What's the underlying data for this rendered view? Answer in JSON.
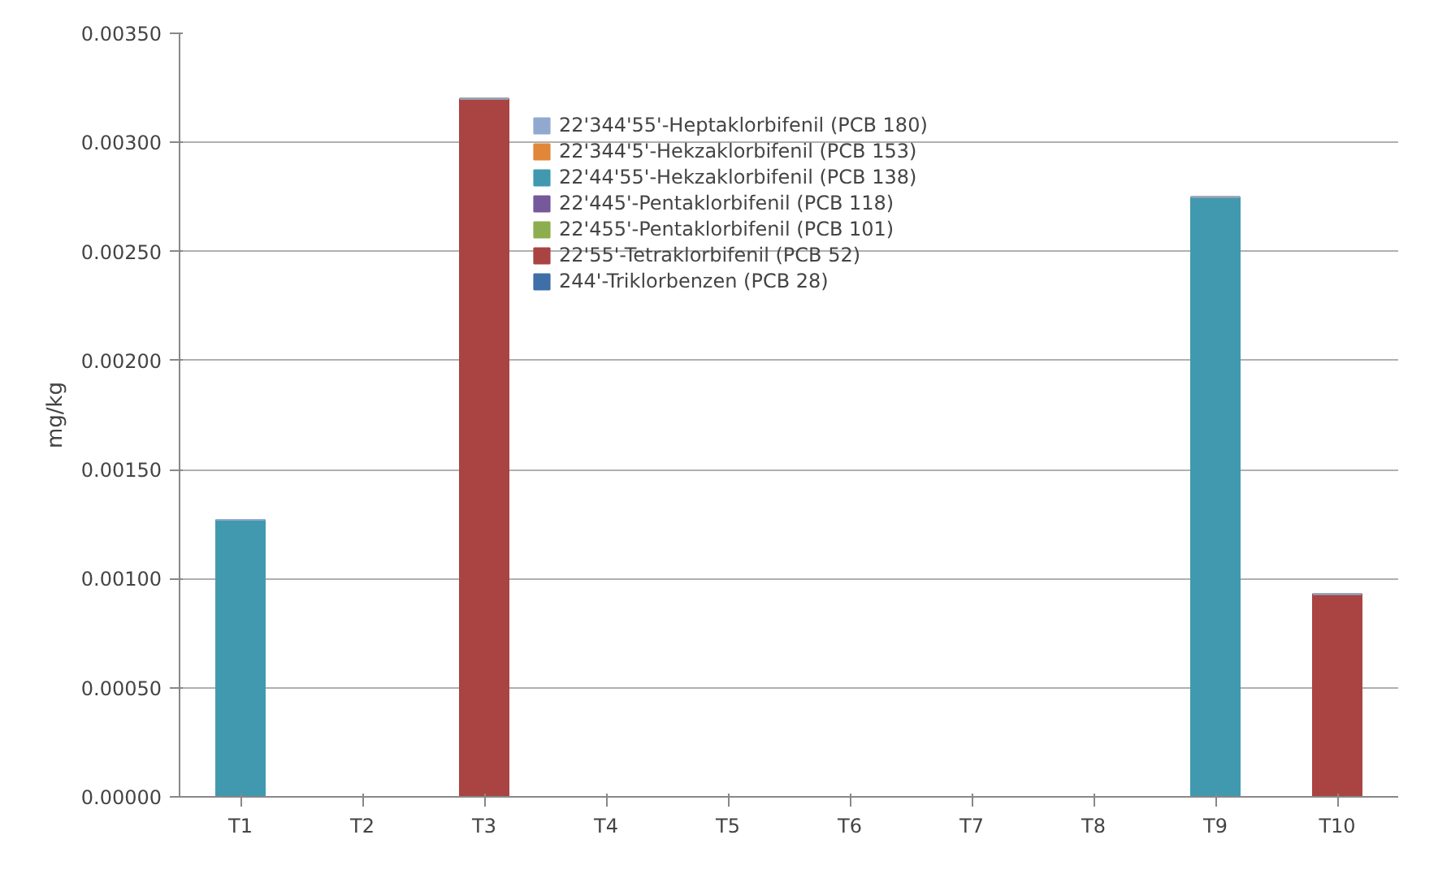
{
  "chart_data": {
    "type": "bar",
    "stacked": true,
    "ylabel": "mg/kg",
    "categories": [
      "T1",
      "T2",
      "T3",
      "T4",
      "T5",
      "T6",
      "T7",
      "T8",
      "T9",
      "T10"
    ],
    "series": [
      {
        "name": "244'-Triklorbenzen (PCB 28)",
        "color": "#3e6fa8",
        "values": [
          0,
          0,
          0,
          0,
          0,
          0,
          0,
          0,
          0,
          0
        ]
      },
      {
        "name": "22'55'-Tetraklorbifenil (PCB 52)",
        "color": "#a94442",
        "values": [
          0,
          0,
          0.0032,
          0,
          0,
          0,
          0,
          0,
          0,
          0.00093
        ]
      },
      {
        "name": "22'455'-Pentaklorbifenil (PCB 101)",
        "color": "#8cae4f",
        "values": [
          0,
          0,
          0,
          0,
          0,
          0,
          0,
          0,
          0,
          0
        ]
      },
      {
        "name": "22'445'-Pentaklorbifenil (PCB 118)",
        "color": "#75599a",
        "values": [
          0,
          0,
          0,
          0,
          0,
          0,
          0,
          0,
          0,
          0
        ]
      },
      {
        "name": "22'44'55'-Hekzaklorbifenil (PCB 138)",
        "color": "#4199b0",
        "values": [
          0.00127,
          0,
          0,
          0,
          0,
          0,
          0,
          0,
          0.00275,
          0
        ]
      },
      {
        "name": "22'344'5'-Hekzaklorbifenil (PCB 153)",
        "color": "#e0873a",
        "values": [
          0,
          0,
          0,
          0,
          0,
          0,
          0,
          0,
          0,
          0
        ]
      },
      {
        "name": "22'344'55'-Heptaklorbifenil (PCB 180)",
        "color": "#92a9cf",
        "values": [
          0,
          0,
          0,
          0,
          0,
          0,
          0,
          0,
          0,
          0
        ]
      }
    ],
    "ylim": [
      0,
      0.0035
    ],
    "yticks": [
      {
        "value": 0,
        "label": "0.00000"
      },
      {
        "value": 0.0005,
        "label": "0.00050"
      },
      {
        "value": 0.001,
        "label": "0.00100"
      },
      {
        "value": 0.0015,
        "label": "0.00150"
      },
      {
        "value": 0.002,
        "label": "0.00200"
      },
      {
        "value": 0.0025,
        "label": "0.00250"
      },
      {
        "value": 0.003,
        "label": "0.00300"
      },
      {
        "value": 0.0035,
        "label": "0.00350"
      }
    ],
    "grid": "y",
    "legend": "top"
  }
}
